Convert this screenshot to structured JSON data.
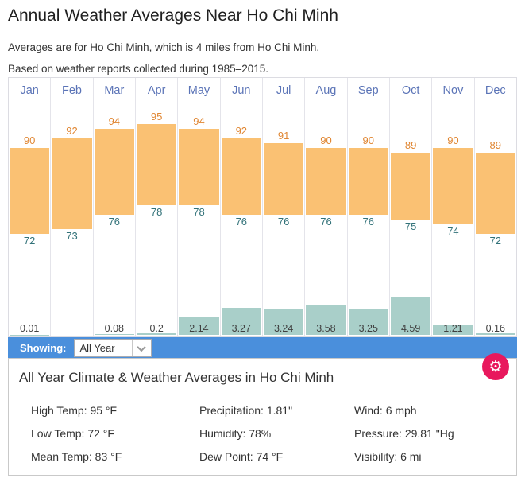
{
  "header": {
    "title": "Annual Weather Averages Near Ho Chi Minh",
    "subtitle_location": "Averages are for Ho Chi Minh, which is 4 miles from Ho Chi Minh.",
    "subtitle_period": "Based on weather reports collected during 1985–2015."
  },
  "chart_data": {
    "type": "bar",
    "categories": [
      "Jan",
      "Feb",
      "Mar",
      "Apr",
      "May",
      "Jun",
      "Jul",
      "Aug",
      "Sep",
      "Oct",
      "Nov",
      "Dec"
    ],
    "series": [
      {
        "name": "High Temp",
        "unit": "°F",
        "color": "#fac173",
        "label_color": "#e08632",
        "values": [
          90,
          92,
          94,
          95,
          94,
          92,
          91,
          90,
          90,
          89,
          90,
          89
        ]
      },
      {
        "name": "Low Temp",
        "unit": "°F",
        "color": "#fac173",
        "label_color": "#327279",
        "values": [
          72,
          73,
          76,
          78,
          78,
          76,
          76,
          76,
          76,
          75,
          74,
          72
        ]
      },
      {
        "name": "Precipitation",
        "unit": "in",
        "color": "#a9cfc9",
        "label_color": "#3f3f3f",
        "values": [
          0.01,
          0,
          0.08,
          0.2,
          2.14,
          3.27,
          3.24,
          3.58,
          3.25,
          4.59,
          1.21,
          0.16
        ],
        "labels": [
          "0.01",
          "",
          "0.08",
          "0.2",
          "2.14",
          "3.27",
          "3.24",
          "3.58",
          "3.25",
          "4.59",
          "1.21",
          "0.16"
        ]
      }
    ],
    "title": "Annual Weather Averages Near Ho Chi Minh",
    "legend": "none",
    "month_label_color": "#5b74b7",
    "temp_axis_max_shown": 95,
    "grid": "column-separators-only"
  },
  "toolbar": {
    "showing_label": "Showing:",
    "dropdown_value": "All Year",
    "bar_color": "#4a8fdc",
    "settings_button_color": "#e8185d",
    "settings_glyph": "⚙"
  },
  "summary": {
    "title": "All Year Climate & Weather Averages in Ho Chi Minh",
    "stats": [
      {
        "id": "high-temp",
        "label": "High Temp:",
        "value": "95 °F"
      },
      {
        "id": "precipitation",
        "label": "Precipitation:",
        "value": "1.81\""
      },
      {
        "id": "wind",
        "label": "Wind:",
        "value": "6 mph"
      },
      {
        "id": "low-temp",
        "label": "Low Temp:",
        "value": "72 °F"
      },
      {
        "id": "humidity",
        "label": "Humidity:",
        "value": "78%"
      },
      {
        "id": "pressure",
        "label": "Pressure:",
        "value": "29.81 \"Hg"
      },
      {
        "id": "mean-temp",
        "label": "Mean Temp:",
        "value": "83 °F"
      },
      {
        "id": "dew-point",
        "label": "Dew Point:",
        "value": "74 °F"
      },
      {
        "id": "visibility",
        "label": "Visibility:",
        "value": "6 mi"
      }
    ]
  }
}
